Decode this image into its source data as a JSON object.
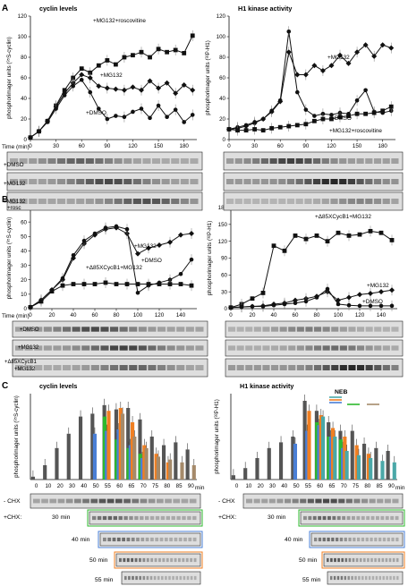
{
  "panels": {
    "A": "A",
    "B": "B",
    "C": "C"
  },
  "gel_labels": {
    "A_left": [
      "+DMSO",
      "+MG132",
      "+MG132",
      "+rosc"
    ],
    "A_right": [],
    "B_left": [
      "+DMSO",
      "+MG132",
      "+Δ85XCycB1",
      "+MG132"
    ],
    "C_rows": [
      "- CHX",
      "+CHX:",
      "30 min",
      "40 min",
      "50 min",
      "55 min"
    ]
  },
  "time_label": "Time (min)",
  "nebs": "NEB",
  "min_label": "min",
  "colors": {
    "black": "#111111",
    "c_gray": "#555555",
    "c_green": "#2db92d",
    "c_blue": "#4a7fd6",
    "c_orange": "#f07f22",
    "c_brown": "#a58a6a",
    "c_teal": "#4aa8a8"
  },
  "chart_data": [
    {
      "type": "line",
      "id": "A-left",
      "title": "cyclin levels",
      "ylabel": "phosphorimager units (³⁵S-cyclin)",
      "ylim": [
        0,
        120
      ],
      "yticks": [
        0,
        20,
        40,
        60,
        80,
        100,
        120
      ],
      "x": [
        0,
        10,
        20,
        30,
        40,
        50,
        60,
        70,
        80,
        90,
        100,
        110,
        120,
        130,
        140,
        150,
        160,
        170,
        180,
        190
      ],
      "xticks": [
        0,
        30,
        60,
        90,
        120,
        150,
        180
      ],
      "xlim": [
        0,
        195
      ],
      "series": [
        {
          "name": "+MG132+roscovitine",
          "marker": "square",
          "values": [
            2,
            8,
            18,
            33,
            48,
            60,
            69,
            65,
            72,
            77,
            73,
            80,
            82,
            85,
            80,
            88,
            85,
            87,
            84,
            101
          ]
        },
        {
          "name": "+MG132",
          "marker": "diamond",
          "values": [
            2,
            8,
            18,
            32,
            45,
            55,
            63,
            60,
            52,
            50,
            49,
            48,
            51,
            48,
            57,
            50,
            55,
            45,
            53,
            48
          ]
        },
        {
          "name": "+DMSO",
          "marker": "circle",
          "values": [
            2,
            8,
            17,
            30,
            43,
            52,
            58,
            46,
            30,
            20,
            23,
            22,
            27,
            30,
            21,
            33,
            22,
            29,
            17,
            24
          ]
        }
      ]
    },
    {
      "type": "line",
      "id": "A-right",
      "title": "H1 kinase activity",
      "ylabel": "phosphorimager units (³²P-H1)",
      "ylim": [
        0,
        120
      ],
      "yticks": [
        0,
        20,
        40,
        60,
        80,
        100,
        120
      ],
      "x": [
        0,
        10,
        20,
        30,
        40,
        50,
        60,
        70,
        80,
        90,
        100,
        110,
        120,
        130,
        140,
        150,
        160,
        170,
        180,
        190
      ],
      "xticks": [
        0,
        30,
        60,
        90,
        120,
        150,
        180
      ],
      "xlim": [
        0,
        195
      ],
      "series": [
        {
          "name": "+MG132",
          "marker": "diamond",
          "values": [
            10,
            11,
            13,
            16,
            20,
            27,
            37,
            85,
            63,
            63,
            72,
            67,
            72,
            82,
            74,
            85,
            92,
            81,
            92,
            89
          ]
        },
        {
          "name": "+DMSO",
          "marker": "circle",
          "values": [
            10,
            12,
            14,
            17,
            20,
            28,
            38,
            105,
            46,
            29,
            23,
            25,
            24,
            26,
            25,
            38,
            48,
            27,
            26,
            28
          ]
        },
        {
          "name": "+MG132+roscovitine",
          "marker": "square",
          "values": [
            10,
            9,
            9,
            10,
            9,
            11,
            12,
            13,
            14,
            15,
            18,
            20,
            20,
            22,
            23,
            25,
            25,
            26,
            28,
            32
          ]
        }
      ]
    },
    {
      "type": "line",
      "id": "B-left",
      "title": "cyclin levels",
      "ylabel": "phosphorimager units (³⁵S-cyclin)",
      "ylim": [
        0,
        70
      ],
      "yticks": [
        0,
        10,
        20,
        30,
        40,
        50,
        60,
        70
      ],
      "x": [
        0,
        10,
        20,
        30,
        40,
        50,
        60,
        70,
        80,
        90,
        100,
        110,
        120,
        130,
        140,
        150
      ],
      "xticks": [
        0,
        20,
        40,
        60,
        80,
        100,
        120,
        140
      ],
      "xlim": [
        0,
        155
      ],
      "series": [
        {
          "name": "+MG132",
          "marker": "diamond",
          "values": [
            1,
            6,
            13,
            20,
            35,
            45,
            51,
            55,
            56,
            52,
            38,
            42,
            44,
            46,
            51,
            52
          ]
        },
        {
          "name": "+DMSO",
          "marker": "circle",
          "values": [
            1,
            6,
            13,
            21,
            37,
            47,
            52,
            56,
            57,
            55,
            11,
            16,
            18,
            20,
            24,
            34
          ]
        },
        {
          "name": "+Δ85XCycB1+MG132",
          "marker": "square",
          "values": [
            1,
            5,
            12,
            16,
            17,
            17,
            17,
            18,
            17,
            17,
            17,
            17,
            17,
            17,
            17,
            16
          ]
        }
      ]
    },
    {
      "type": "line",
      "id": "B-right",
      "title": "H1 kinase activity",
      "ylabel": "phosphorimager units (³²P-H1)",
      "ylim": [
        0,
        180
      ],
      "yticks": [
        0,
        30,
        60,
        90,
        120,
        150,
        180
      ],
      "x": [
        0,
        10,
        20,
        30,
        40,
        50,
        60,
        70,
        80,
        90,
        100,
        110,
        120,
        130,
        140,
        150
      ],
      "xticks": [
        0,
        20,
        40,
        60,
        80,
        100,
        120,
        140
      ],
      "xlim": [
        0,
        155
      ],
      "series": [
        {
          "name": "+Δ85XCycB1+MG132",
          "marker": "square",
          "values": [
            2,
            8,
            18,
            28,
            112,
            103,
            130,
            124,
            130,
            120,
            135,
            130,
            132,
            138,
            135,
            122
          ]
        },
        {
          "name": "+MG132",
          "marker": "diamond",
          "values": [
            2,
            3,
            4,
            5,
            8,
            10,
            15,
            18,
            22,
            30,
            15,
            20,
            25,
            27,
            30,
            33
          ]
        },
        {
          "name": "+DMSO",
          "marker": "circle",
          "values": [
            2,
            3,
            4,
            4,
            6,
            8,
            10,
            13,
            20,
            35,
            8,
            6,
            5,
            5,
            5,
            5
          ]
        }
      ]
    },
    {
      "type": "bar",
      "id": "C-left",
      "title": "cyclin levels",
      "ylabel": "phosphorimager units (³⁵S-cyclin)",
      "ylim": [
        0,
        60
      ],
      "categories": [
        "0",
        "10",
        "20",
        "30",
        "40",
        "50",
        "55",
        "60",
        "65",
        "70",
        "75",
        "80",
        "85",
        "90"
      ],
      "series": [
        {
          "name": "- CHX",
          "color": "c_gray",
          "values": [
            2,
            10,
            22,
            32,
            44,
            46,
            52,
            49,
            50,
            42,
            30,
            24,
            26,
            21
          ]
        },
        {
          "name": "+CHX 30 min",
          "color": "c_green",
          "values": [
            null,
            null,
            null,
            null,
            null,
            null,
            44,
            28,
            22,
            18,
            null,
            null,
            null,
            null
          ]
        },
        {
          "name": "+CHX 40 min",
          "color": "c_blue",
          "values": [
            null,
            null,
            null,
            null,
            null,
            32,
            34,
            35,
            24,
            15,
            null,
            null,
            null,
            null
          ]
        },
        {
          "name": "+CHX 50 min",
          "color": "c_orange",
          "values": [
            null,
            null,
            null,
            null,
            null,
            null,
            48,
            50,
            40,
            24,
            18,
            12,
            null,
            null
          ]
        },
        {
          "name": "+CHX 55 min",
          "color": "c_brown",
          "values": [
            null,
            null,
            null,
            null,
            null,
            null,
            null,
            46,
            30,
            22,
            16,
            14,
            12,
            10
          ]
        }
      ]
    },
    {
      "type": "bar",
      "id": "C-right",
      "title": "H1 kinase activity",
      "ylabel": "phosphorimager units (³²P-H1)",
      "ylim": [
        0,
        60
      ],
      "categories": [
        "0",
        "10",
        "20",
        "30",
        "40",
        "50",
        "55",
        "60",
        "65",
        "70",
        "75",
        "80",
        "85",
        "90"
      ],
      "series": [
        {
          "name": "- CHX",
          "color": "c_gray",
          "values": [
            3,
            8,
            15,
            22,
            26,
            30,
            55,
            48,
            40,
            34,
            34,
            25,
            22,
            20
          ]
        },
        {
          "name": "+CHX 30 min",
          "color": "c_green",
          "values": [
            null,
            null,
            null,
            null,
            null,
            null,
            null,
            40,
            30,
            28,
            null,
            null,
            null,
            null
          ]
        },
        {
          "name": "+CHX 40 min",
          "color": "c_blue",
          "values": [
            null,
            null,
            null,
            null,
            null,
            25,
            34,
            38,
            30,
            22,
            null,
            null,
            null,
            null
          ]
        },
        {
          "name": "+CHX 50 min",
          "color": "c_orange",
          "values": [
            null,
            null,
            null,
            null,
            null,
            null,
            48,
            45,
            36,
            30,
            24,
            18,
            null,
            null
          ]
        },
        {
          "name": "+CHX 55 min",
          "color": "c_teal",
          "values": [
            null,
            null,
            null,
            null,
            null,
            null,
            null,
            44,
            30,
            20,
            17,
            15,
            13,
            12
          ]
        }
      ]
    }
  ]
}
